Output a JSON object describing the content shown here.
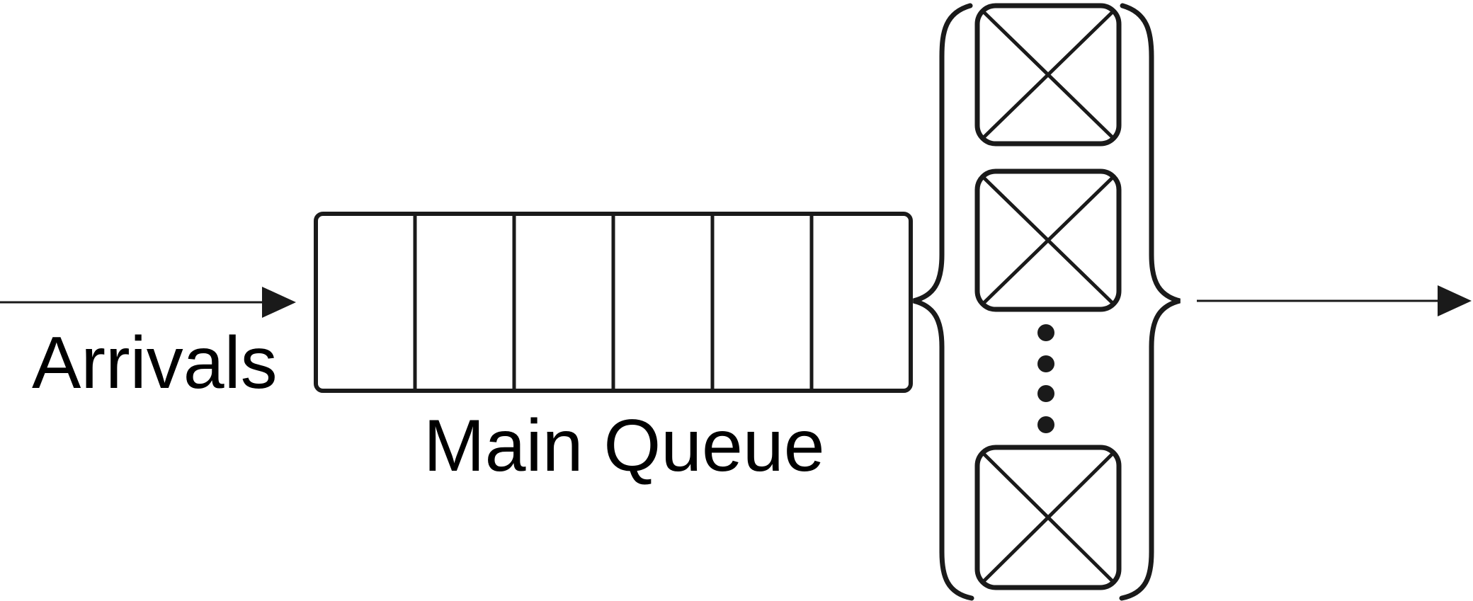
{
  "labels": {
    "arrivals": "Arrivals",
    "main_queue": "Main Queue"
  },
  "icons": {
    "arrow": "arrow-right-icon",
    "server": "server-x-box-icon",
    "brace": "curly-brace-icon",
    "ellipsis": "vertical-dots-icon"
  },
  "colors": {
    "stroke": "#1a1a1a",
    "background": "#ffffff"
  }
}
